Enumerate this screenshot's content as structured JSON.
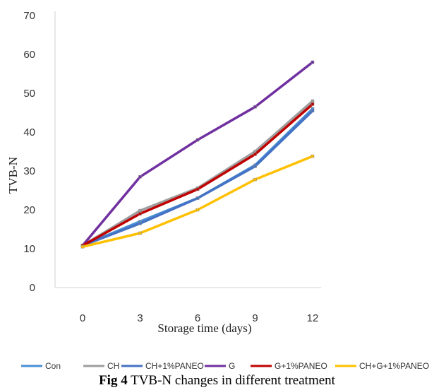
{
  "chart_data": {
    "type": "line",
    "title": "",
    "xlabel": "Storage time (days)",
    "ylabel": "TVB-N",
    "x": [
      0,
      3,
      6,
      9,
      12
    ],
    "x_tick_labels": [
      "0",
      "3",
      "6",
      "9",
      "12"
    ],
    "ylim": [
      0,
      70
    ],
    "y_ticks": [
      0,
      10,
      20,
      30,
      40,
      50,
      60,
      70
    ],
    "grid": false,
    "legend_position": "bottom",
    "series": [
      {
        "name": "Con",
        "color": "#4a8fd4",
        "values": [
          10.8,
          17.0,
          23.0,
          31.5,
          46.0
        ]
      },
      {
        "name": "CH",
        "color": "#9e9e9e",
        "values": [
          10.8,
          19.8,
          25.6,
          35.0,
          48.0
        ]
      },
      {
        "name": "CH+1%PANEO",
        "color": "#4472c4",
        "values": [
          10.8,
          16.5,
          23.0,
          31.2,
          45.5
        ]
      },
      {
        "name": "G",
        "color": "#7030a0",
        "values": [
          10.8,
          28.5,
          38.0,
          46.5,
          58.0
        ]
      },
      {
        "name": "G+1%PANEO",
        "color": "#c00000",
        "values": [
          10.8,
          19.0,
          25.3,
          34.3,
          47.2
        ]
      },
      {
        "name": "CH+G+1%PANEO",
        "color": "#ffc000",
        "values": [
          10.5,
          14.0,
          20.0,
          27.8,
          33.8
        ]
      }
    ]
  },
  "caption": {
    "label": "Fig 4",
    "text": " TVB-N changes in different treatment"
  }
}
